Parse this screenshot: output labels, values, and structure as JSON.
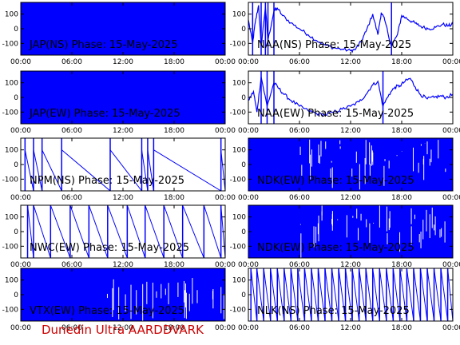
{
  "footer": "Dunedin Ultra AARDDVARK",
  "colors": {
    "trace": "#0000ff",
    "fill": "#0000ff",
    "footer": "#cc0000"
  },
  "x_ticks": [
    "00:00",
    "06:00",
    "12:00",
    "18:00",
    "00:00"
  ],
  "y_ticks": [
    "100",
    "0",
    "-100"
  ],
  "chart_data": [
    {
      "type": "area",
      "title": "JAP(NS) Phase: 15-May-2025",
      "xlim": [
        0,
        24
      ],
      "ylim": [
        -180,
        180
      ],
      "grid": false,
      "series": [
        {
          "style": "saturated",
          "x": [
            0,
            24
          ],
          "y": [
            180,
            180
          ]
        }
      ]
    },
    {
      "type": "line",
      "title": "NAA(NS) Phase: 15-May-2025",
      "xlim": [
        0,
        24
      ],
      "ylim": [
        -180,
        180
      ],
      "grid": false,
      "series": [
        {
          "style": "line",
          "x": [
            0,
            0.5,
            0.8,
            1.2,
            1.5,
            2.0,
            2.3,
            3.0,
            3.4,
            4.0,
            5.0,
            6.0,
            7.0,
            8.0,
            9.0,
            10.0,
            11.0,
            12.0,
            12.6,
            13.2,
            13.8,
            14.6,
            15.2,
            15.6,
            16.0,
            16.8,
            17.5,
            18.0,
            18.6,
            19.2,
            19.8,
            20.5,
            21.2,
            22.0,
            22.8,
            23.5,
            24.0
          ],
          "y": [
            60,
            -100,
            40,
            160,
            -120,
            150,
            -80,
            120,
            140,
            90,
            40,
            0,
            -40,
            -80,
            -110,
            -130,
            -140,
            -150,
            -140,
            -90,
            -20,
            100,
            -40,
            110,
            60,
            -120,
            -40,
            90,
            70,
            50,
            30,
            10,
            0,
            10,
            30,
            20,
            30
          ]
        }
      ]
    },
    {
      "type": "area",
      "title": "JAP(EW) Phase: 15-May-2025",
      "xlim": [
        0,
        24
      ],
      "ylim": [
        -180,
        180
      ],
      "grid": false,
      "series": [
        {
          "style": "saturated",
          "x": [
            0,
            24
          ],
          "y": [
            180,
            180
          ]
        }
      ]
    },
    {
      "type": "line",
      "title": "NAA(EW) Phase: 15-May-2025",
      "xlim": [
        0,
        24
      ],
      "ylim": [
        -180,
        180
      ],
      "grid": false,
      "series": [
        {
          "style": "line",
          "x": [
            0,
            0.6,
            1.0,
            1.5,
            2.2,
            3.0,
            3.6,
            4.2,
            5.0,
            6.0,
            7.0,
            8.0,
            9.0,
            10.0,
            11.0,
            12.0,
            13.0,
            13.8,
            14.5,
            15.2,
            15.8,
            16.5,
            17.2,
            17.8,
            18.4,
            19.0,
            19.6,
            20.2,
            21.0,
            21.8,
            22.5,
            23.2,
            24.0
          ],
          "y": [
            -20,
            40,
            -100,
            140,
            -60,
            100,
            60,
            20,
            -20,
            -60,
            -90,
            -110,
            -120,
            -100,
            -80,
            -60,
            -30,
            20,
            80,
            110,
            -60,
            20,
            70,
            80,
            110,
            130,
            70,
            20,
            -10,
            0,
            10,
            0,
            20
          ]
        }
      ]
    },
    {
      "type": "line",
      "title": "NPM(NS) Phase: 15-May-2025",
      "xlim": [
        0,
        24
      ],
      "ylim": [
        -180,
        180
      ],
      "grid": false,
      "series": [
        {
          "style": "sawtooth",
          "x": [
            0,
            24
          ],
          "y": [
            100,
            -180
          ],
          "resets_at": [
            0.5,
            1.5,
            2.5,
            4.8,
            10.5,
            14.2,
            14.9,
            15.6,
            23.5
          ]
        }
      ]
    },
    {
      "type": "area",
      "title": "NDK(EW) Phase: 15-May-2025",
      "xlim": [
        0,
        24
      ],
      "ylim": [
        -180,
        180
      ],
      "grid": false,
      "series": [
        {
          "style": "dense-noise",
          "x": [
            0,
            24
          ],
          "y": [
            -180,
            180
          ]
        }
      ]
    },
    {
      "type": "line",
      "title": "NWC(EW) Phase: 15-May-2025",
      "xlim": [
        0,
        24
      ],
      "ylim": [
        -180,
        180
      ],
      "grid": false,
      "series": [
        {
          "style": "sawtooth",
          "x": [
            0,
            24
          ],
          "y": [
            180,
            -180
          ],
          "resets_at": [
            0.8,
            1.5,
            3.5,
            5.8,
            8.0,
            10.2,
            12.5,
            14.6,
            16.8,
            19.0,
            21.5,
            23.5
          ]
        }
      ]
    },
    {
      "type": "area",
      "title": "NDK(EW) Phase: 15-May-2025",
      "xlim": [
        0,
        24
      ],
      "ylim": [
        -180,
        180
      ],
      "grid": false,
      "series": [
        {
          "style": "dense-noise",
          "x": [
            0,
            24
          ],
          "y": [
            -180,
            180
          ]
        }
      ]
    },
    {
      "type": "area",
      "title": "VTX(EW) Phase: 15-May-2025",
      "xlim": [
        0,
        24
      ],
      "ylim": [
        -180,
        180
      ],
      "grid": false,
      "series": [
        {
          "style": "saturated-with-gaps",
          "x": [
            0,
            24
          ],
          "y": [
            180,
            180
          ]
        }
      ]
    },
    {
      "type": "line",
      "title": "NLK(NS) Phase: 15-May-2025",
      "xlim": [
        0,
        24
      ],
      "ylim": [
        -180,
        180
      ],
      "grid": false,
      "series": [
        {
          "style": "sawtooth",
          "x": [
            0,
            24
          ],
          "y": [
            180,
            -180
          ],
          "resets_at": [
            0.3,
            1.0,
            1.8,
            2.6,
            3.4,
            4.2,
            5.0,
            5.8,
            6.6,
            7.4,
            8.2,
            9.0,
            9.8,
            10.6,
            11.4,
            12.2,
            13.0,
            13.8,
            14.6,
            15.4,
            16.2,
            17.0,
            17.8,
            18.6,
            19.4,
            20.2,
            21.0,
            21.8,
            22.6,
            23.4
          ]
        }
      ]
    }
  ]
}
